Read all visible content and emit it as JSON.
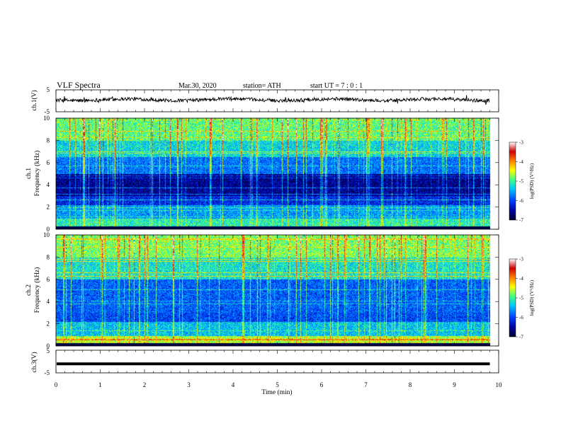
{
  "header": {
    "title": "VLF  Spectra",
    "date": "Mar.30, 2020",
    "station": "station= ATH",
    "start": "start  UT  =    7  : 0   : 1"
  },
  "chart_data": [
    {
      "type": "line",
      "panel": "ch1-waveform",
      "ylabel": "ch.1(V)",
      "ylim": [
        -5,
        5
      ],
      "yticks": [
        "5",
        "-5"
      ],
      "xlim": [
        0,
        10
      ],
      "data_end_min": 9.8,
      "series": [
        {
          "values": "noisy waveform oscillating around 0.5 V, amplitude about ±1 V with brief spikes"
        }
      ]
    },
    {
      "type": "heatmap",
      "panel": "ch1-spectrogram",
      "ylabel": "ch.1\nFrequency  (kHz)",
      "ylabel_line1": "ch.1",
      "ylabel_line2": "Frequency  (kHz)",
      "ylim": [
        0,
        10
      ],
      "yticks": [
        "0",
        "2",
        "4",
        "6",
        "8",
        "10"
      ],
      "xlim": [
        0,
        10
      ],
      "colorbar": {
        "label": "log(PSD) (V²/Hz)",
        "range": [
          -7,
          -3
        ],
        "ticks": [
          "-3",
          "-4",
          "-5",
          "-6",
          "-7"
        ],
        "colors": [
          "#000030",
          "#0000a0",
          "#0040ff",
          "#00c8ff",
          "#40ff80",
          "#ffff00",
          "#ff8000",
          "#d00000",
          "#ffffff"
        ]
      },
      "profile": {
        "freq_bands_khz": [
          {
            "from": 0,
            "to": 0.3,
            "level": -7
          },
          {
            "from": 0.3,
            "to": 1.0,
            "level": -5.1
          },
          {
            "from": 1.0,
            "to": 2.2,
            "level": -5.6
          },
          {
            "from": 2.2,
            "to": 3.0,
            "level": -6.2
          },
          {
            "from": 3.0,
            "to": 5.0,
            "level": -6.6
          },
          {
            "from": 5.0,
            "to": 6.5,
            "level": -5.8
          },
          {
            "from": 6.5,
            "to": 8.0,
            "level": -5.3
          },
          {
            "from": 8.0,
            "to": 10.0,
            "level": -4.9
          }
        ],
        "sferic_density_per_min": 9
      }
    },
    {
      "type": "heatmap",
      "panel": "ch2-spectrogram",
      "ylabel": "ch.2\nFrequency  (kHz)",
      "ylabel_line1": "ch.2",
      "ylabel_line2": "Frequency  (kHz)",
      "ylim": [
        0,
        10
      ],
      "yticks": [
        "0",
        "2",
        "4",
        "6",
        "8",
        "10"
      ],
      "xlim": [
        0,
        10
      ],
      "colorbar": {
        "label": "log(PSD) (V²/Hz)",
        "range": [
          -7,
          -3
        ],
        "ticks": [
          "-3",
          "-4",
          "-5",
          "-6",
          "-7"
        ],
        "colors": [
          "#000030",
          "#0000a0",
          "#0040ff",
          "#00c8ff",
          "#40ff80",
          "#ffff00",
          "#ff8000",
          "#d00000",
          "#ffffff"
        ]
      },
      "profile": {
        "freq_bands_khz": [
          {
            "from": 0,
            "to": 0.3,
            "level": -6.9
          },
          {
            "from": 0.3,
            "to": 0.9,
            "level": -4.6
          },
          {
            "from": 0.9,
            "to": 2.2,
            "level": -5.4
          },
          {
            "from": 2.2,
            "to": 3.0,
            "level": -6.0
          },
          {
            "from": 3.0,
            "to": 6.0,
            "level": -5.9
          },
          {
            "from": 6.0,
            "to": 8.0,
            "level": -5.2
          },
          {
            "from": 8.0,
            "to": 10.0,
            "level": -4.8
          }
        ],
        "sferic_density_per_min": 8
      }
    },
    {
      "type": "line",
      "panel": "ch3-waveform",
      "ylabel": "ch.3(V)",
      "ylim": [
        -5,
        5
      ],
      "yticks": [
        "5",
        "-5"
      ],
      "xlim": [
        0,
        10
      ],
      "data_end_min": 9.8,
      "series": [
        {
          "values": "flat thick trace at about -1 V"
        }
      ]
    }
  ],
  "xaxis": {
    "label": "Time  (min)",
    "ticks": [
      "0",
      "1",
      "2",
      "3",
      "4",
      "5",
      "6",
      "7",
      "8",
      "9",
      "10"
    ]
  }
}
